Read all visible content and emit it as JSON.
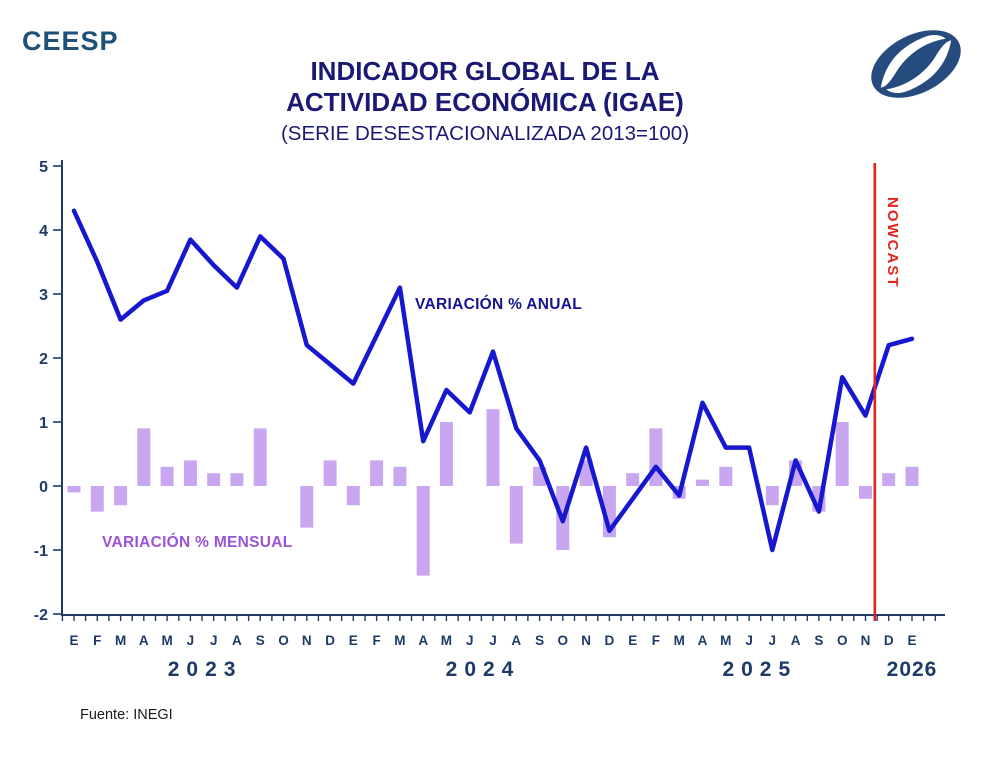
{
  "header": {
    "logo_text": "CEESP",
    "title_line1": "INDICADOR GLOBAL DE LA",
    "title_line2": "ACTIVIDAD ECONÓMICA (IGAE)",
    "subtitle": "(SERIE DESESTACIONALIZADA 2013=100)"
  },
  "footer": {
    "source": "Fuente: INEGI"
  },
  "colors": {
    "line": "#1717D0",
    "bar": "#C9A6F0",
    "annual_label": "#141492",
    "monthly_label": "#9C53D6",
    "nowcast_red": "#E3241B",
    "axis": "#1E3A66",
    "title_navy": "#1A1A75",
    "logo_blue": "#1F5177",
    "logo_mark_blue": "#264B7F"
  },
  "chart_data": {
    "type": "line+bar",
    "title": "INDICADOR GLOBAL DE LA ACTIVIDAD ECONÓMICA (IGAE)",
    "subtitle": "(SERIE DESESTACIONALIZADA 2013=100)",
    "x_months": [
      "E",
      "F",
      "M",
      "A",
      "M",
      "J",
      "J",
      "A",
      "S",
      "O",
      "N",
      "D",
      "E",
      "F",
      "M",
      "A",
      "M",
      "J",
      "J",
      "A",
      "S",
      "O",
      "N",
      "D",
      "E",
      "F",
      "M",
      "A",
      "M",
      "J",
      "J",
      "A",
      "S",
      "O",
      "N",
      "D",
      "E"
    ],
    "years": [
      {
        "label": "2023",
        "month_index": 5.63,
        "spaced": true
      },
      {
        "label": "2024",
        "month_index": 17.57,
        "spaced": true
      },
      {
        "label": "2025",
        "month_index": 29.46,
        "spaced": true
      },
      {
        "label": "2026",
        "month_index": 36.0,
        "spaced": false
      }
    ],
    "series": [
      {
        "name": "VARIACIÓN % ANUAL",
        "type": "line",
        "values": [
          4.3,
          3.5,
          2.6,
          2.9,
          3.05,
          3.85,
          3.45,
          3.1,
          3.9,
          3.55,
          2.2,
          1.9,
          1.6,
          2.35,
          3.1,
          0.7,
          1.5,
          1.15,
          2.1,
          0.9,
          0.4,
          -0.55,
          0.6,
          -0.7,
          -0.2,
          0.3,
          -0.15,
          1.3,
          0.6,
          0.6,
          -1.0,
          0.4,
          -0.4,
          1.7,
          1.1,
          2.2,
          2.3
        ]
      },
      {
        "name": "VARIACIÓN % MENSUAL",
        "type": "bar",
        "values": [
          -0.1,
          -0.4,
          -0.3,
          0.9,
          0.3,
          0.4,
          0.2,
          0.2,
          0.9,
          0.0,
          -0.65,
          0.4,
          -0.3,
          0.4,
          0.3,
          -1.4,
          1.0,
          0.0,
          1.2,
          -0.9,
          0.3,
          -1.0,
          0.4,
          -0.8,
          0.2,
          0.9,
          -0.2,
          0.1,
          0.3,
          0.0,
          -0.3,
          0.4,
          -0.4,
          1.0,
          -0.2,
          0.2,
          0.3
        ]
      }
    ],
    "ylim": [
      -2,
      5
    ],
    "yticks": [
      5,
      4,
      3,
      2,
      1,
      0,
      -1,
      -2
    ],
    "grid": false,
    "legend_position": "inline-annotations",
    "nowcast": {
      "label": "NOWCAST",
      "position_month_index": 34.4
    }
  }
}
